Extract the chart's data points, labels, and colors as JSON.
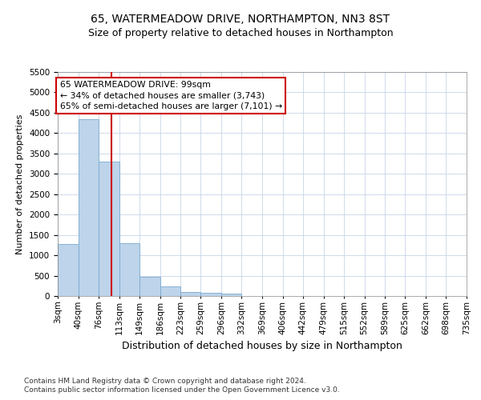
{
  "title": "65, WATERMEADOW DRIVE, NORTHAMPTON, NN3 8ST",
  "subtitle": "Size of property relative to detached houses in Northampton",
  "xlabel": "Distribution of detached houses by size in Northampton",
  "ylabel": "Number of detached properties",
  "bar_color": "#bdd4ea",
  "bar_edge_color": "#7aaad0",
  "grid_color": "#c8d4e8",
  "annotation_line_color": "#cc0000",
  "annotation_box_edge_color": "#cc0000",
  "footnote1": "Contains HM Land Registry data © Crown copyright and database right 2024.",
  "footnote2": "Contains public sector information licensed under the Open Government Licence v3.0.",
  "annotation_line1": "65 WATERMEADOW DRIVE: 99sqm",
  "annotation_line2": "← 34% of detached houses are smaller (3,743)",
  "annotation_line3": "65% of semi-detached houses are larger (7,101) →",
  "property_sqm": 99,
  "bin_edges": [
    3,
    40,
    76,
    113,
    149,
    186,
    223,
    259,
    296,
    332,
    369,
    406,
    442,
    479,
    515,
    552,
    589,
    625,
    662,
    698,
    735
  ],
  "bin_labels": [
    "3sqm",
    "40sqm",
    "76sqm",
    "113sqm",
    "149sqm",
    "186sqm",
    "223sqm",
    "259sqm",
    "296sqm",
    "332sqm",
    "369sqm",
    "406sqm",
    "442sqm",
    "479sqm",
    "515sqm",
    "552sqm",
    "589sqm",
    "625sqm",
    "662sqm",
    "698sqm",
    "735sqm"
  ],
  "bar_heights": [
    1270,
    4350,
    3300,
    1300,
    480,
    235,
    100,
    70,
    50,
    0,
    0,
    0,
    0,
    0,
    0,
    0,
    0,
    0,
    0,
    0
  ],
  "ylim": [
    0,
    5500
  ],
  "yticks": [
    0,
    500,
    1000,
    1500,
    2000,
    2500,
    3000,
    3500,
    4000,
    4500,
    5000,
    5500
  ],
  "background_color": "#ffffff",
  "title_fontsize": 10,
  "subtitle_fontsize": 9,
  "ylabel_fontsize": 8,
  "xlabel_fontsize": 9,
  "tick_fontsize": 7.5,
  "footnote_fontsize": 6.5
}
